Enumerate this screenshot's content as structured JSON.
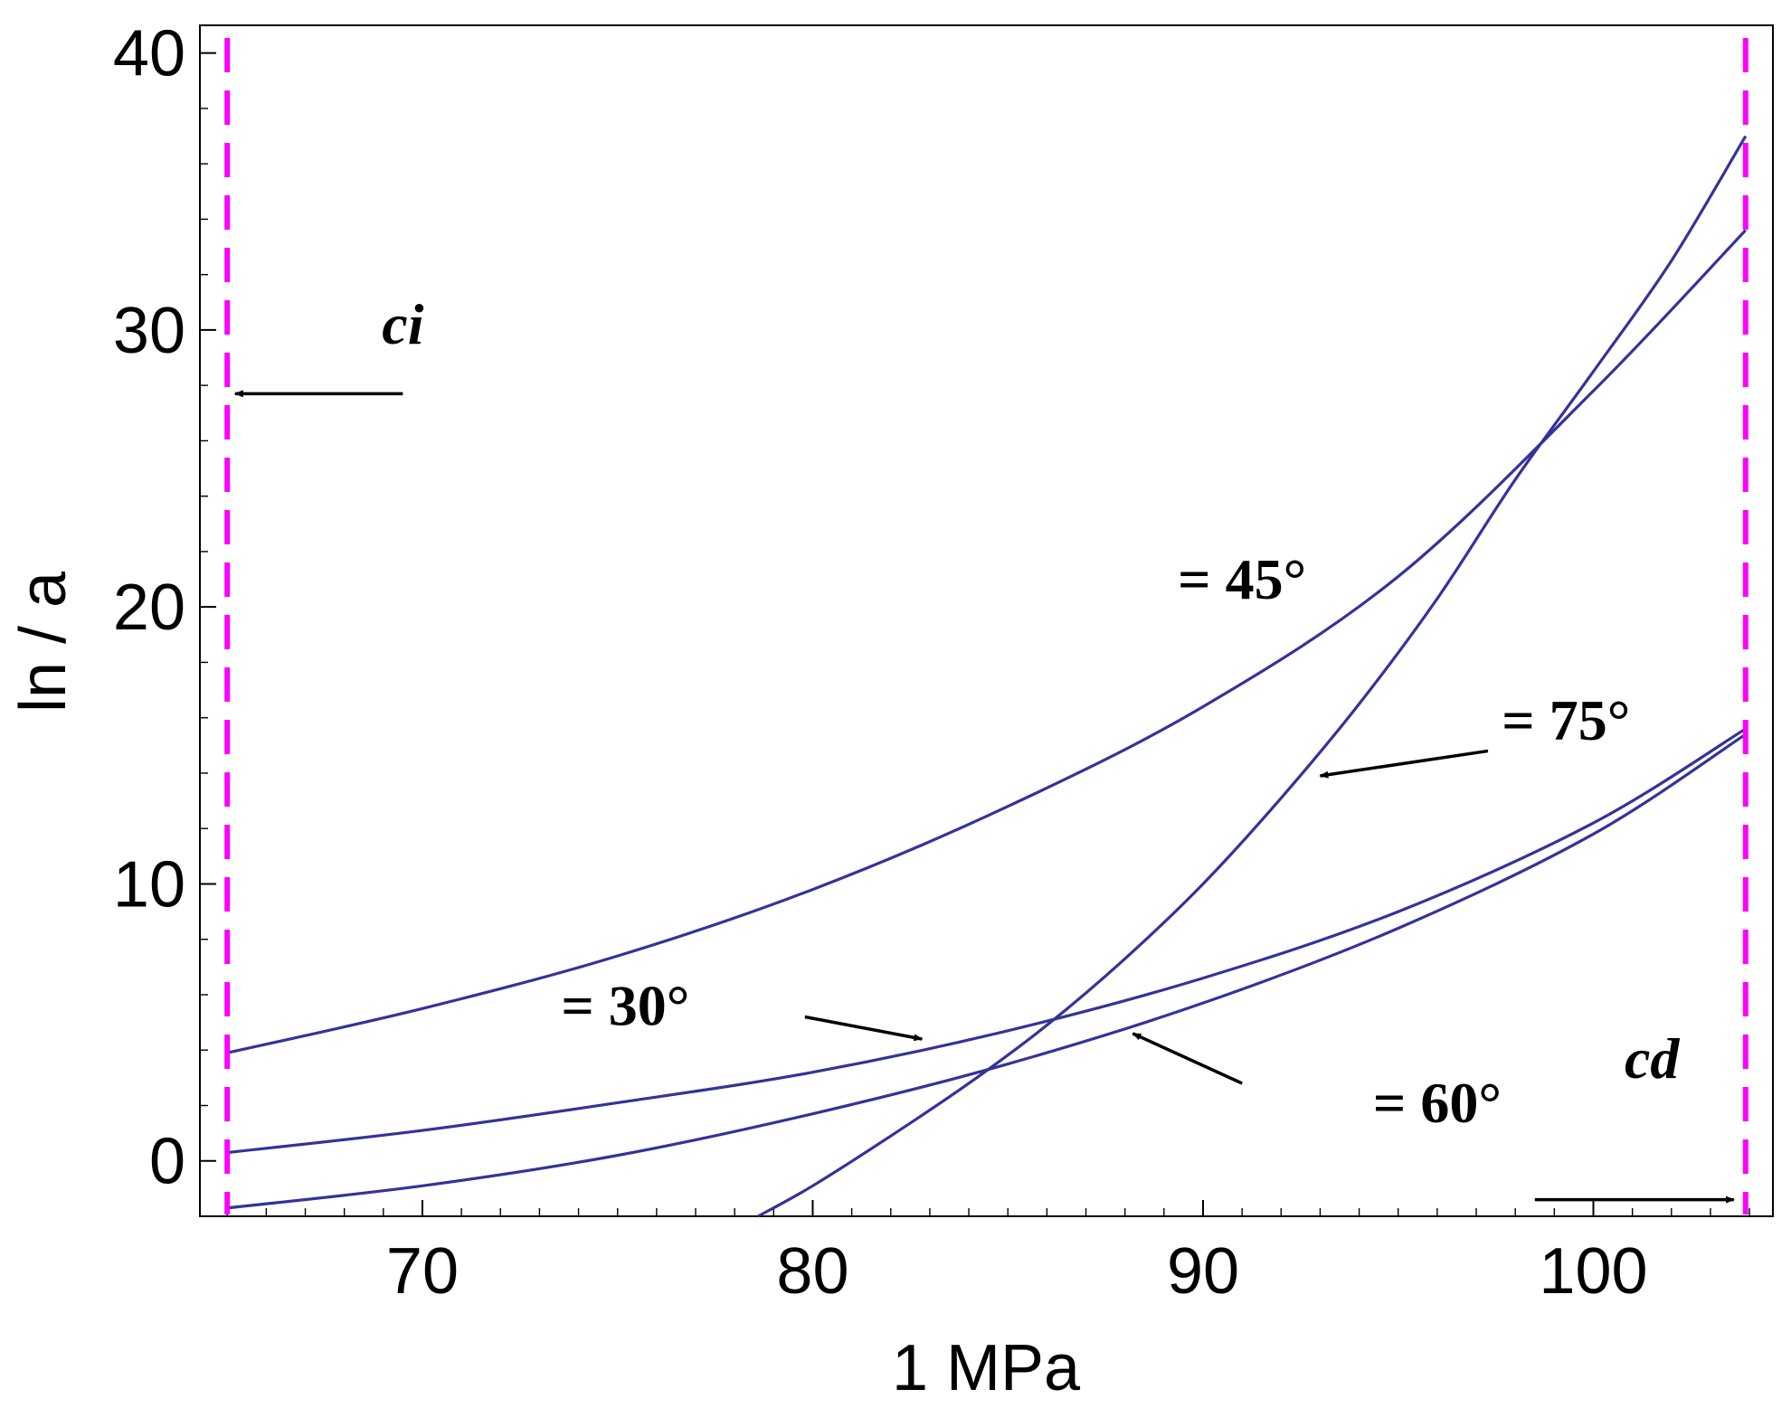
{
  "chart_data": {
    "type": "line",
    "xlabel": "1 MPa",
    "ylabel": "ln / a",
    "xlim": [
      64.3,
      104.6
    ],
    "ylim": [
      -2,
      41
    ],
    "xticks": [
      70,
      80,
      90,
      100
    ],
    "yticks": [
      0,
      10,
      20,
      30,
      40
    ],
    "grid": false,
    "colors": {
      "series": "#333399",
      "limit_line": "#ff00ff",
      "arrow": "#000000"
    },
    "series": [
      {
        "name": "= 30°",
        "x": [
          65,
          70,
          75,
          80,
          85,
          90,
          95,
          100,
          103.9
        ],
        "y": [
          0.3,
          1.1,
          2.1,
          3.2,
          4.7,
          6.6,
          9.0,
          12.2,
          15.6
        ]
      },
      {
        "name": "= 45°",
        "x": [
          65,
          70,
          75,
          80,
          85,
          90,
          95,
          100,
          103.9
        ],
        "y": [
          3.9,
          5.5,
          7.4,
          9.8,
          12.8,
          16.4,
          21.1,
          27.8,
          33.6
        ]
      },
      {
        "name": "= 60°",
        "x": [
          65,
          70,
          75,
          80,
          85,
          90,
          95,
          100,
          103.9
        ],
        "y": [
          -1.7,
          -0.9,
          0.2,
          1.7,
          3.5,
          5.7,
          8.4,
          11.8,
          15.4
        ]
      },
      {
        "name": "= 75°",
        "x": [
          78.6,
          80,
          82,
          84,
          86,
          88,
          90,
          92,
          94,
          96,
          98,
          100,
          102,
          103.9
        ],
        "y": [
          -2,
          -0.9,
          0.9,
          2.8,
          4.9,
          7.3,
          10.0,
          13.1,
          16.5,
          20.3,
          24.6,
          28.5,
          32.5,
          37.0
        ]
      }
    ],
    "vlines": [
      {
        "label": "ci",
        "x": 65
      },
      {
        "label": "cd",
        "x": 103.9
      }
    ],
    "annotations": [
      {
        "text": "ci",
        "style": "italic",
        "x": 69.5,
        "y": 29.5,
        "arrow_from": [
          69.5,
          27.7
        ],
        "arrow_to": [
          65.2,
          27.7
        ]
      },
      {
        "text": "cd",
        "style": "italic",
        "x": 101.5,
        "y": 3.0,
        "arrow_from": [
          98.5,
          -1.4
        ],
        "arrow_to": [
          103.6,
          -1.4
        ]
      },
      {
        "text": "= 45°",
        "x": 91.0,
        "y": 20.3
      },
      {
        "text": "= 75°",
        "x": 99.3,
        "y": 15.2,
        "arrow_from": [
          97.3,
          14.8
        ],
        "arrow_to": [
          93.0,
          13.9
        ]
      },
      {
        "text": "= 30°",
        "x": 75.2,
        "y": 4.9,
        "arrow_from": [
          79.8,
          5.2
        ],
        "arrow_to": [
          82.8,
          4.4
        ]
      },
      {
        "text": "= 60°",
        "x": 96.0,
        "y": 1.4,
        "arrow_from": [
          91.0,
          2.8
        ],
        "arrow_to": [
          88.2,
          4.6
        ]
      }
    ]
  }
}
